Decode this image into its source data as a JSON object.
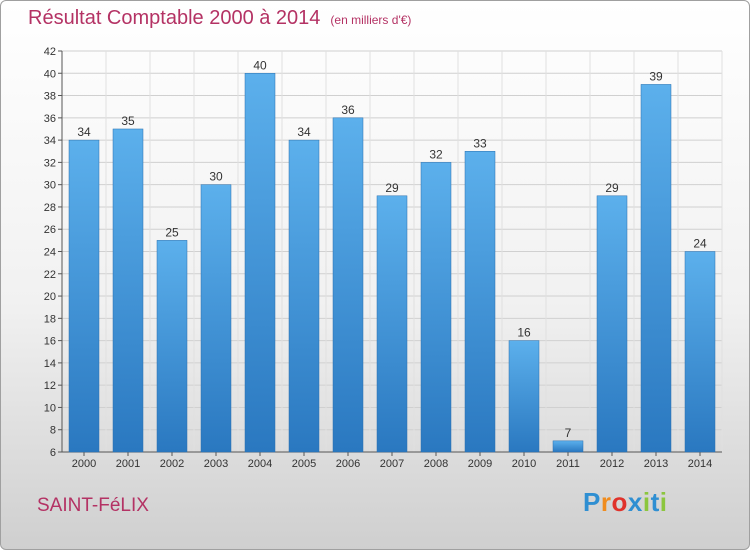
{
  "header": {
    "title": "Résultat Comptable 2000 à 2014",
    "unit": "(en milliers d'€)"
  },
  "footer": {
    "commune": "SAINT-FéLIX",
    "logo_letters": [
      {
        "ch": "P",
        "color": "#2f8fd2"
      },
      {
        "ch": "r",
        "color": "#f08c1e"
      },
      {
        "ch": "o",
        "color": "#e0322b"
      },
      {
        "ch": "x",
        "color": "#2f8fd2"
      },
      {
        "ch": "i",
        "color": "#8cc63e"
      },
      {
        "ch": "t",
        "color": "#2f8fd2"
      },
      {
        "ch": "i",
        "color": "#8cc63e"
      }
    ]
  },
  "chart_data": {
    "type": "bar",
    "title": "Résultat Comptable 2000 à 2014",
    "categories": [
      "2000",
      "2001",
      "2002",
      "2003",
      "2004",
      "2005",
      "2006",
      "2007",
      "2008",
      "2009",
      "2010",
      "2011",
      "2012",
      "2013",
      "2014"
    ],
    "values": [
      34,
      35,
      25,
      30,
      40,
      34,
      36,
      29,
      32,
      33,
      16,
      7,
      29,
      39,
      24
    ],
    "ylim": [
      6,
      42
    ],
    "yticks": [
      6,
      8,
      10,
      12,
      14,
      16,
      18,
      20,
      22,
      24,
      26,
      28,
      30,
      32,
      34,
      36,
      38,
      40,
      42
    ],
    "grid": true,
    "bar_color": "#3b8fd6",
    "bar_color_light": "#5aaeea"
  }
}
